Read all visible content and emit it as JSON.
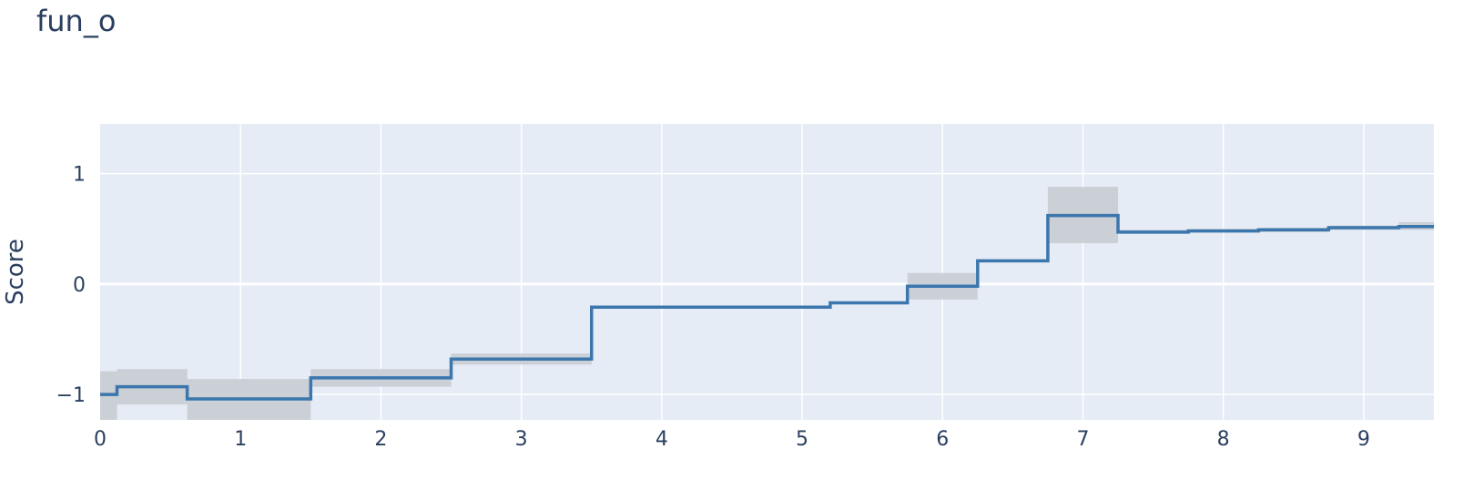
{
  "chart_data": {
    "type": "line",
    "title": "fun_o",
    "xlabel": "",
    "ylabel": "Score",
    "xlim": [
      0,
      9.5
    ],
    "ylim": [
      -1.23,
      1.45
    ],
    "x_ticks": [
      0,
      1,
      2,
      3,
      4,
      5,
      6,
      7,
      8,
      9
    ],
    "y_ticks": [
      -1,
      0,
      1
    ],
    "y_tick_labels": [
      "−1",
      "0",
      "1"
    ],
    "grid": true,
    "legend": "none",
    "colors": {
      "plot_bg": "#e5ecf6",
      "grid": "#ffffff",
      "line": "#3b76ad",
      "band": "#c8ccd3"
    },
    "series": [
      {
        "shape": "step",
        "segments": [
          {
            "x0": 0.0,
            "x1": 0.12,
            "y": -1.0,
            "lower": -1.23,
            "upper": -0.79
          },
          {
            "x0": 0.12,
            "x1": 0.62,
            "y": -0.93,
            "lower": -1.09,
            "upper": -0.77
          },
          {
            "x0": 0.62,
            "x1": 1.5,
            "y": -1.04,
            "lower": -1.23,
            "upper": -0.86
          },
          {
            "x0": 1.5,
            "x1": 2.5,
            "y": -0.85,
            "lower": -0.93,
            "upper": -0.77
          },
          {
            "x0": 2.5,
            "x1": 3.5,
            "y": -0.68,
            "lower": -0.73,
            "upper": -0.63
          },
          {
            "x0": 3.5,
            "x1": 5.2,
            "y": -0.21,
            "lower": -0.22,
            "upper": -0.2
          },
          {
            "x0": 5.2,
            "x1": 5.75,
            "y": -0.17,
            "lower": -0.18,
            "upper": -0.16
          },
          {
            "x0": 5.75,
            "x1": 6.25,
            "y": -0.02,
            "lower": -0.14,
            "upper": 0.1
          },
          {
            "x0": 6.25,
            "x1": 6.75,
            "y": 0.21,
            "lower": 0.2,
            "upper": 0.22
          },
          {
            "x0": 6.75,
            "x1": 7.25,
            "y": 0.62,
            "lower": 0.37,
            "upper": 0.88
          },
          {
            "x0": 7.25,
            "x1": 7.75,
            "y": 0.47,
            "lower": 0.46,
            "upper": 0.49
          },
          {
            "x0": 7.75,
            "x1": 8.25,
            "y": 0.48,
            "lower": 0.47,
            "upper": 0.5
          },
          {
            "x0": 8.25,
            "x1": 8.75,
            "y": 0.49,
            "lower": 0.47,
            "upper": 0.51
          },
          {
            "x0": 8.75,
            "x1": 9.25,
            "y": 0.51,
            "lower": 0.49,
            "upper": 0.53
          },
          {
            "x0": 9.25,
            "x1": 9.5,
            "y": 0.52,
            "lower": 0.49,
            "upper": 0.56
          }
        ]
      }
    ]
  }
}
